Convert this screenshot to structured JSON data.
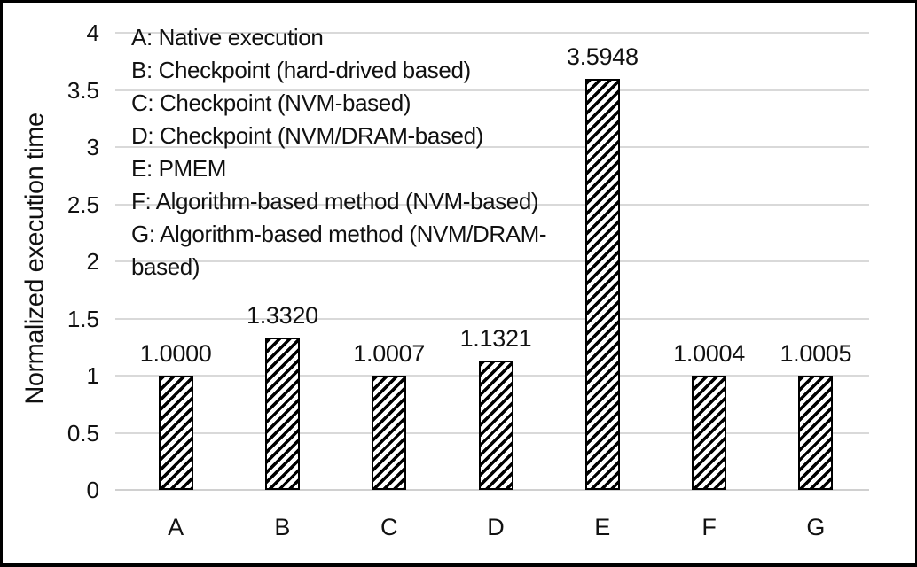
{
  "chart_data": {
    "type": "bar",
    "title": "",
    "xlabel": "",
    "ylabel": "Normalized execution time",
    "categories": [
      "A",
      "B",
      "C",
      "D",
      "E",
      "F",
      "G"
    ],
    "values": [
      1.0,
      1.332,
      1.0007,
      1.1321,
      3.5948,
      1.0004,
      1.0005
    ],
    "value_labels": [
      "1.0000",
      "1.3320",
      "1.0007",
      "1.1321",
      "3.5948",
      "1.0004",
      "1.0005"
    ],
    "ylim": [
      0,
      4
    ],
    "ytick_step": 0.5,
    "ytick_labels": [
      "0",
      "0.5",
      "1",
      "1.5",
      "2",
      "2.5",
      "3",
      "3.5",
      "4"
    ],
    "grid": true,
    "legend_position": "top-left-inside-plot",
    "legend_lines": [
      "A: Native execution",
      "B: Checkpoint (hard-drived based)",
      "C: Checkpoint (NVM-based)",
      "D: Checkpoint (NVM/DRAM-based)",
      "E: PMEM",
      "F: Algorithm-based method (NVM-based)",
      "G: Algorithm-based method (NVM/DRAM-",
      "based)"
    ],
    "category_descriptions": {
      "A": "Native execution",
      "B": "Checkpoint (hard-drived based)",
      "C": "Checkpoint (NVM-based)",
      "D": "Checkpoint (NVM/DRAM-based)",
      "E": "PMEM",
      "F": "Algorithm-based method (NVM-based)",
      "G": "Algorithm-based method (NVM/DRAM-based)"
    },
    "bar_style": "diagonal-hatch",
    "colors": {
      "bar_fill": "#ffffff",
      "bar_hatch": "#000000",
      "bar_border": "#000000",
      "gridline": "#d9d9d9",
      "axis_line": "#d0d0d0",
      "text": "#111111",
      "frame_border": "#000000",
      "background": "#ffffff"
    }
  }
}
